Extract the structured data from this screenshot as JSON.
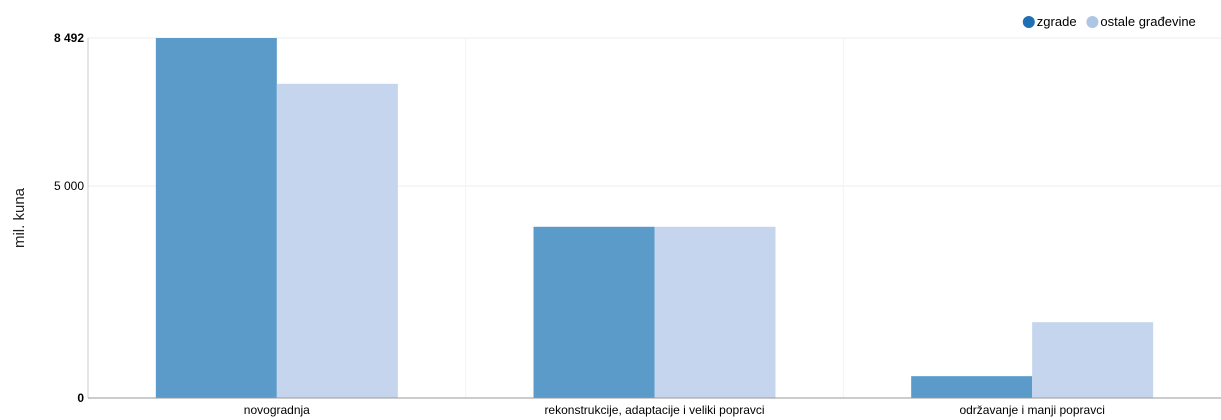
{
  "chart_data": {
    "type": "bar",
    "categories": [
      "novogradnja",
      "rekonstrukcije, adaptacije i veliki popravci",
      "održavanje i manji popravci"
    ],
    "series": [
      {
        "name": "zgrade",
        "values": [
          8492,
          4039,
          515
        ],
        "color": "#5b9bc9"
      },
      {
        "name": "ostale građevine",
        "values": [
          7411,
          4039,
          1788
        ],
        "color": "#c4d5ed"
      }
    ],
    "legend_colors": [
      "#1f6fb4",
      "#adc6e5"
    ],
    "ylabel": "mil. kuna",
    "ylim": [
      0,
      8492
    ],
    "yticks": [
      {
        "value": 0,
        "label": "0",
        "bold": true
      },
      {
        "value": 5000,
        "label": "5 000",
        "bold": false
      },
      {
        "value": 8492,
        "label": "8 492",
        "bold": true
      }
    ],
    "grid": true,
    "legend_position": "top-right"
  }
}
